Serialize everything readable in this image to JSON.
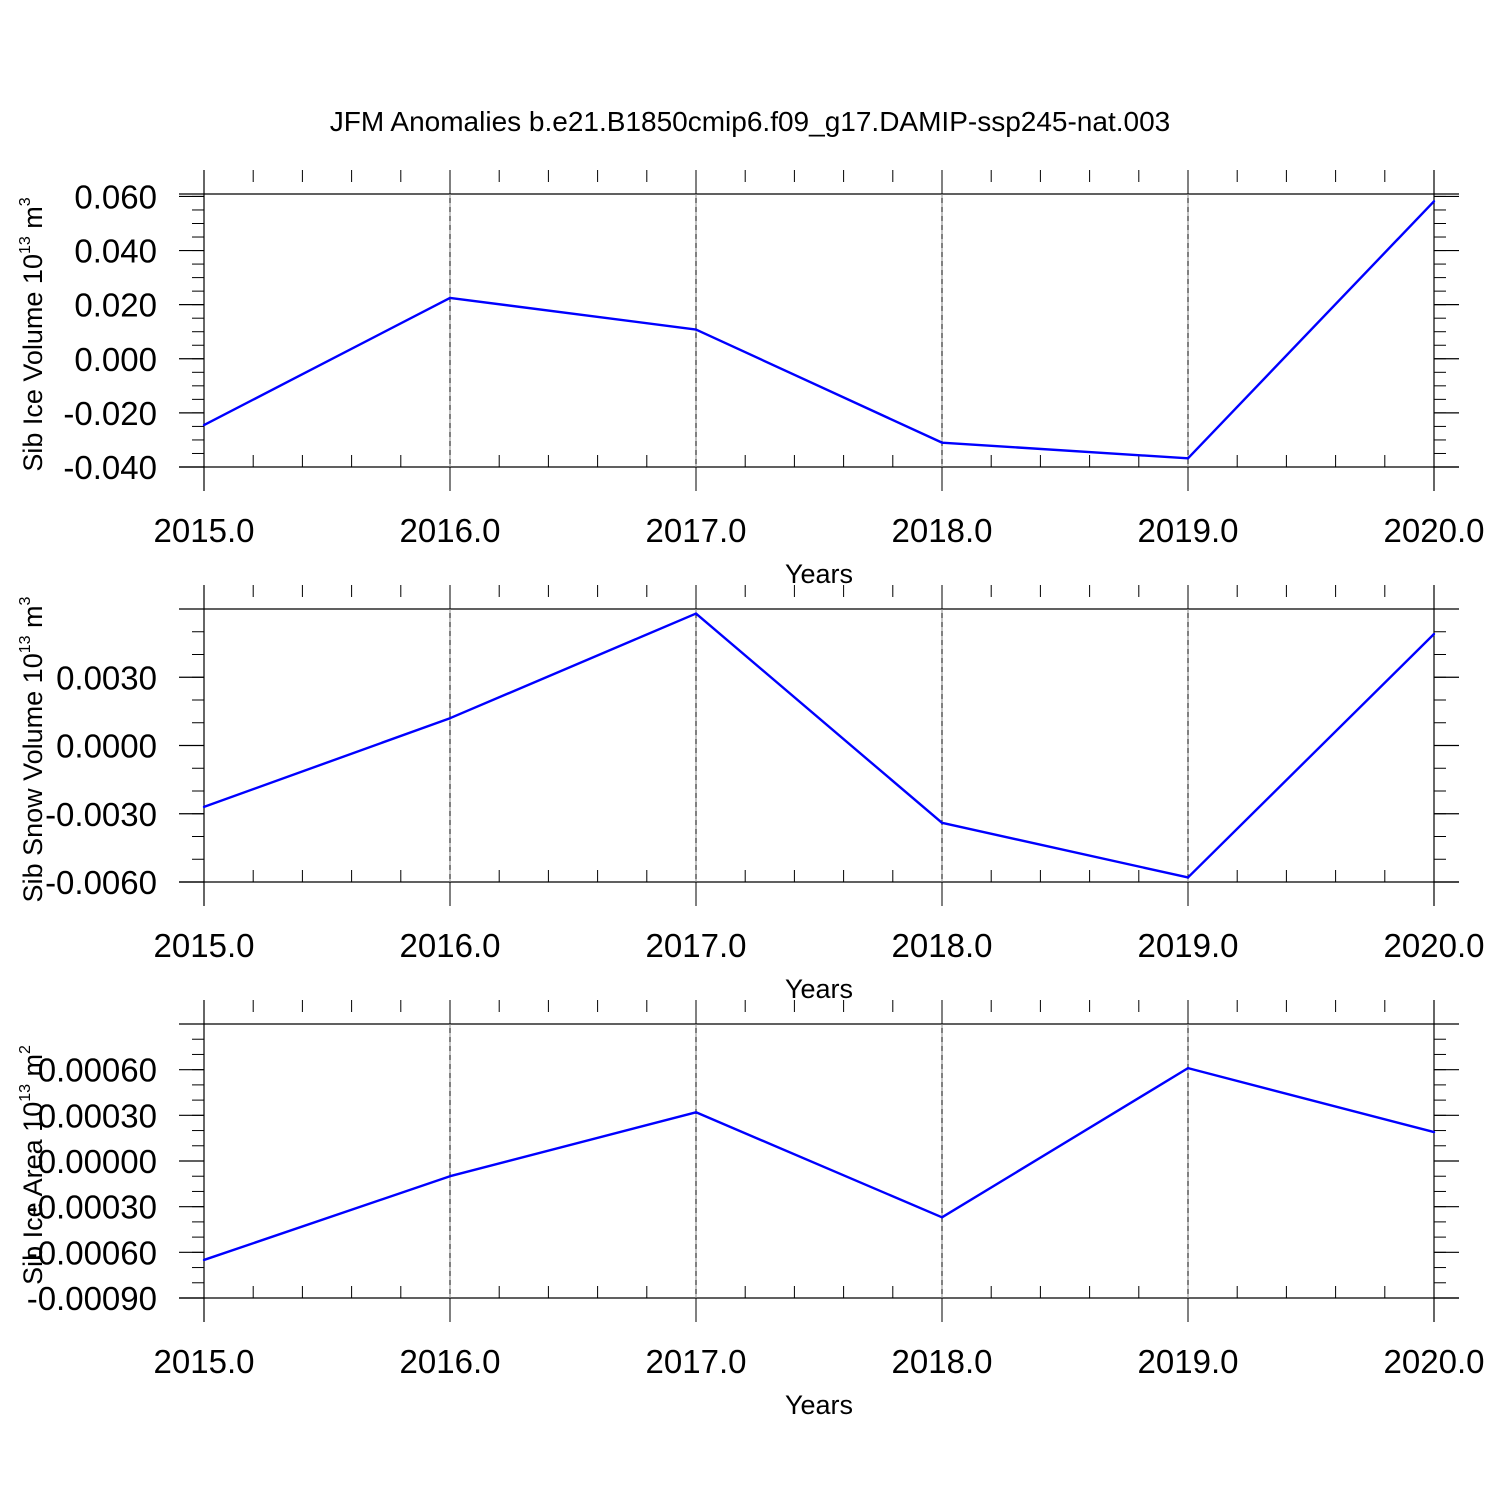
{
  "title": "JFM Anomalies b.e21.B1850cmip6.f09_g17.DAMIP-ssp245-nat.003",
  "colors": {
    "line": "#0000ff",
    "axis": "#000000",
    "grid": "#888888"
  },
  "chart_data": [
    {
      "type": "line",
      "x": [
        2015,
        2016,
        2017,
        2018,
        2019,
        2020
      ],
      "x_tick_labels": [
        "2015.0",
        "2016.0",
        "2017.0",
        "2018.0",
        "2019.0",
        "2020.0"
      ],
      "xlabel": "Years",
      "xlim": [
        2015,
        2020
      ],
      "ylabel_prefix": "Sib Ice Volume 10",
      "ylabel_exp": "13",
      "ylabel_unit": " m",
      "ylabel_unit_exp": "3",
      "ylim": [
        -0.04,
        0.0609
      ],
      "y_ticks": [
        -0.04,
        -0.02,
        0.0,
        0.02,
        0.04,
        0.06
      ],
      "y_tick_labels": [
        "-0.040",
        "-0.020",
        "0.000",
        "0.020",
        "0.040",
        "0.060"
      ],
      "y_minor_step": 0.005,
      "vertical_grid": "dashed at major x ticks",
      "series": [
        {
          "values": [
            -0.0245,
            0.0225,
            0.0108,
            -0.031,
            -0.0368,
            0.0582
          ]
        }
      ]
    },
    {
      "type": "line",
      "x": [
        2015,
        2016,
        2017,
        2018,
        2019,
        2020
      ],
      "x_tick_labels": [
        "2015.0",
        "2016.0",
        "2017.0",
        "2018.0",
        "2019.0",
        "2020.0"
      ],
      "xlabel": "Years",
      "xlim": [
        2015,
        2020
      ],
      "ylabel_prefix": "Sib Snow Volume 10",
      "ylabel_exp": "13",
      "ylabel_unit": " m",
      "ylabel_unit_exp": "3",
      "ylim": [
        -0.006,
        0.006
      ],
      "y_ticks": [
        -0.006,
        -0.003,
        0.0,
        0.003
      ],
      "y_tick_labels": [
        "-0.0060",
        "-0.0030",
        "0.0000",
        "0.0030"
      ],
      "y_minor_step": 0.001,
      "vertical_grid": "dashed at major x ticks",
      "series": [
        {
          "values": [
            -0.0027,
            0.0012,
            0.0058,
            -0.0034,
            -0.0058,
            0.0049
          ]
        }
      ]
    },
    {
      "type": "line",
      "x": [
        2015,
        2016,
        2017,
        2018,
        2019,
        2020
      ],
      "x_tick_labels": [
        "2015.0",
        "2016.0",
        "2017.0",
        "2018.0",
        "2019.0",
        "2020.0"
      ],
      "xlabel": "Years",
      "xlim": [
        2015,
        2020
      ],
      "ylabel_prefix": "Sib Ice Area 10",
      "ylabel_exp": "13",
      "ylabel_unit": " m",
      "ylabel_unit_exp": "2",
      "ylim": [
        -0.0009,
        0.0009
      ],
      "y_ticks": [
        -0.0009,
        -0.0006,
        -0.0003,
        0.0,
        0.0003,
        0.0006
      ],
      "y_tick_labels": [
        "-0.00090",
        "-0.00060",
        "-0.00030",
        "0.00000",
        "0.00030",
        "0.00060"
      ],
      "y_minor_step": 0.0001,
      "vertical_grid": "dashed at major x ticks",
      "series": [
        {
          "values": [
            -0.00065,
            -0.0001,
            0.00032,
            -0.00037,
            0.00061,
            0.00019
          ]
        }
      ]
    }
  ]
}
